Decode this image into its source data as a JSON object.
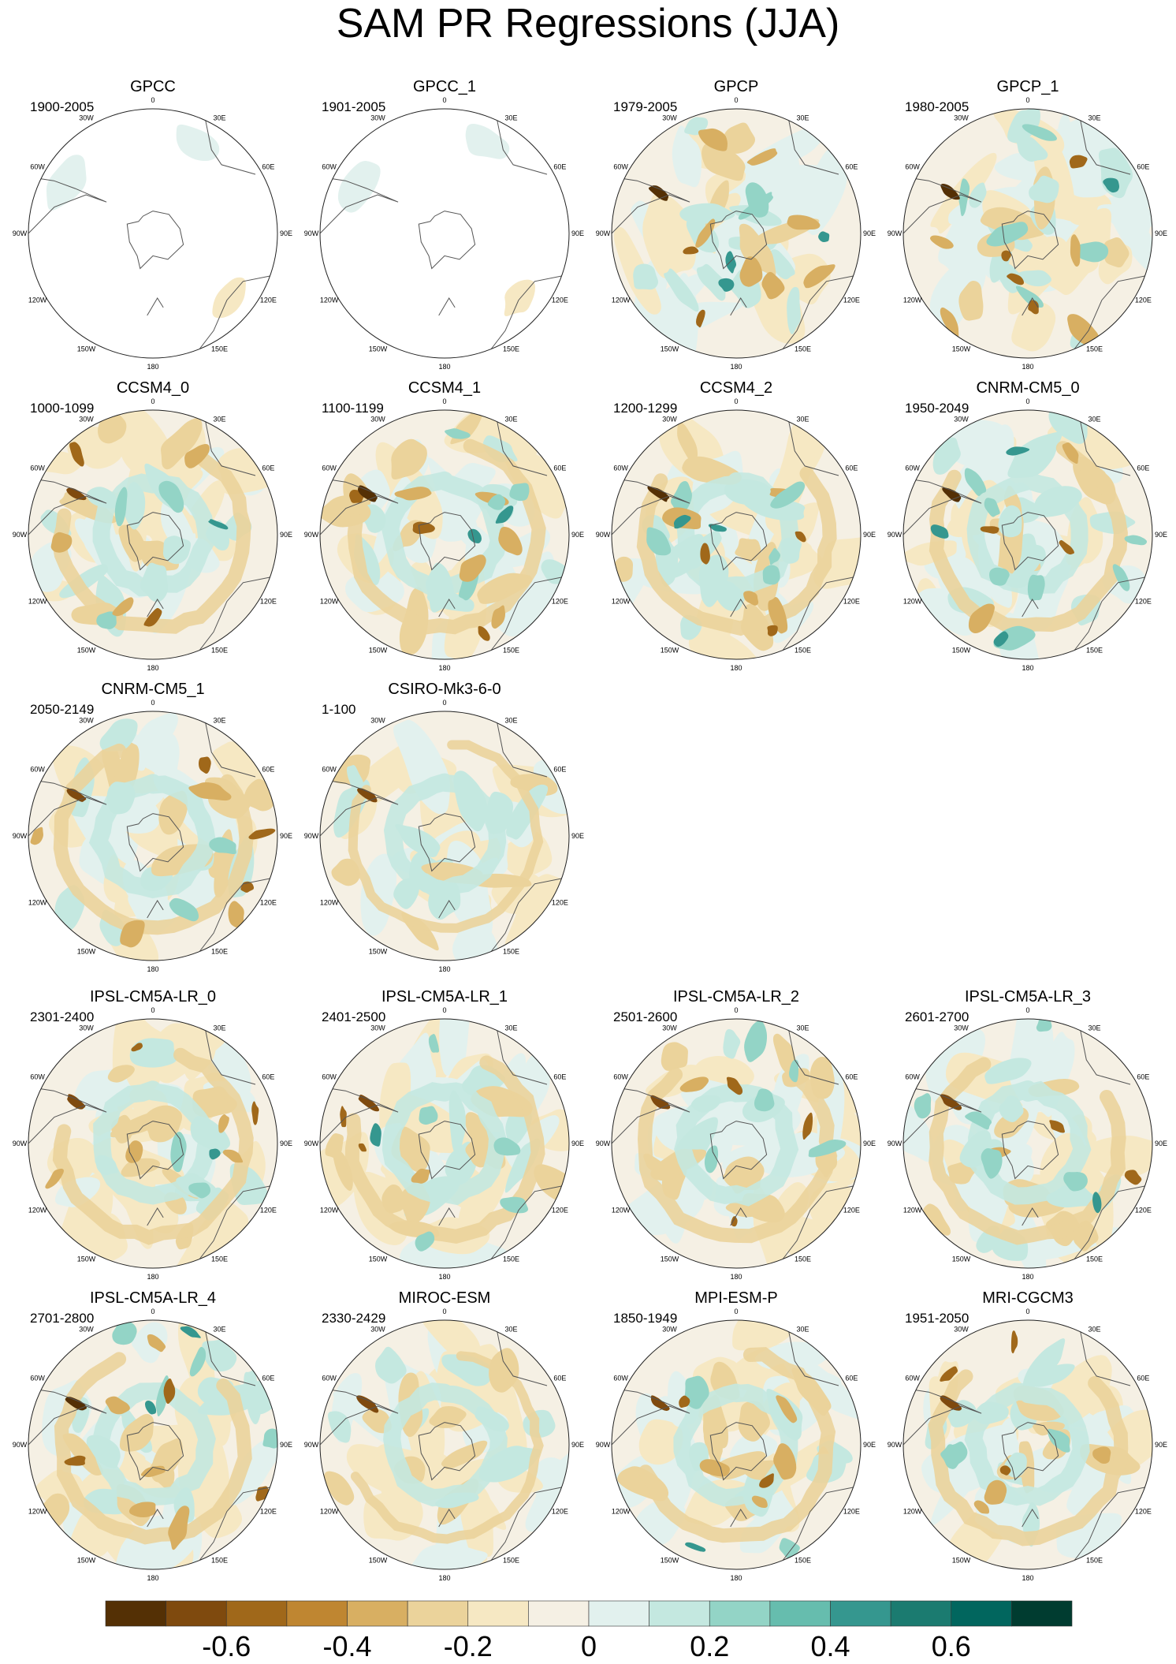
{
  "title": "SAM PR Regressions (JJA)",
  "longitude_labels": [
    "0",
    "30E",
    "60E",
    "90E",
    "120E",
    "150E",
    "180",
    "150W",
    "120W",
    "90W",
    "60W",
    "30W"
  ],
  "panels": [
    {
      "name": "GPCC",
      "period": "1900-2005",
      "pattern": "obs-sparse"
    },
    {
      "name": "GPCC_1",
      "period": "1901-2005",
      "pattern": "obs-sparse"
    },
    {
      "name": "GPCP",
      "period": "1979-2005",
      "pattern": "obs"
    },
    {
      "name": "GPCP_1",
      "period": "1980-2005",
      "pattern": "obs"
    },
    {
      "name": "CCSM4_0",
      "period": "1000-1099",
      "pattern": "model"
    },
    {
      "name": "CCSM4_1",
      "period": "1100-1199",
      "pattern": "model-strong"
    },
    {
      "name": "CCSM4_2",
      "period": "1200-1299",
      "pattern": "model-strong"
    },
    {
      "name": "CNRM-CM5_0",
      "period": "1950-2049",
      "pattern": "model-strong"
    },
    {
      "name": "CNRM-CM5_1",
      "period": "2050-2149",
      "pattern": "model"
    },
    {
      "name": "CSIRO-Mk3-6-0",
      "period": "1-100",
      "pattern": "model-weak"
    },
    {
      "name": "IPSL-CM5A-LR_0",
      "period": "2301-2400",
      "pattern": "model"
    },
    {
      "name": "IPSL-CM5A-LR_1",
      "period": "2401-2500",
      "pattern": "model"
    },
    {
      "name": "IPSL-CM5A-LR_2",
      "period": "2501-2600",
      "pattern": "model"
    },
    {
      "name": "IPSL-CM5A-LR_3",
      "period": "2601-2700",
      "pattern": "model"
    },
    {
      "name": "IPSL-CM5A-LR_4",
      "period": "2701-2800",
      "pattern": "model-strong"
    },
    {
      "name": "MIROC-ESM",
      "period": "2330-2429",
      "pattern": "model-weak"
    },
    {
      "name": "MPI-ESM-P",
      "period": "1850-1949",
      "pattern": "model"
    },
    {
      "name": "MRI-CGCM3",
      "period": "1951-2050",
      "pattern": "model"
    }
  ],
  "colorbar": {
    "colors": [
      "#543005",
      "#7f4a0e",
      "#a0681a",
      "#bf8631",
      "#d8af62",
      "#ebd39b",
      "#f6e8c3",
      "#f5f0e4",
      "#e2f1ee",
      "#c4e8e0",
      "#93d4c6",
      "#66bdae",
      "#35978f",
      "#1b7b70",
      "#01665e",
      "#003c30"
    ],
    "tick_labels": [
      "-0.6",
      "-0.4",
      "-0.2",
      "0",
      "0.2",
      "0.4",
      "0.6"
    ],
    "tick_values": [
      -0.6,
      -0.4,
      -0.2,
      0,
      0.2,
      0.4,
      0.6
    ],
    "boundaries": [
      -0.7,
      -0.6,
      -0.5,
      -0.4,
      -0.3,
      -0.2,
      -0.1,
      0,
      0.1,
      0.2,
      0.3,
      0.4,
      0.5,
      0.6,
      0.7
    ]
  }
}
